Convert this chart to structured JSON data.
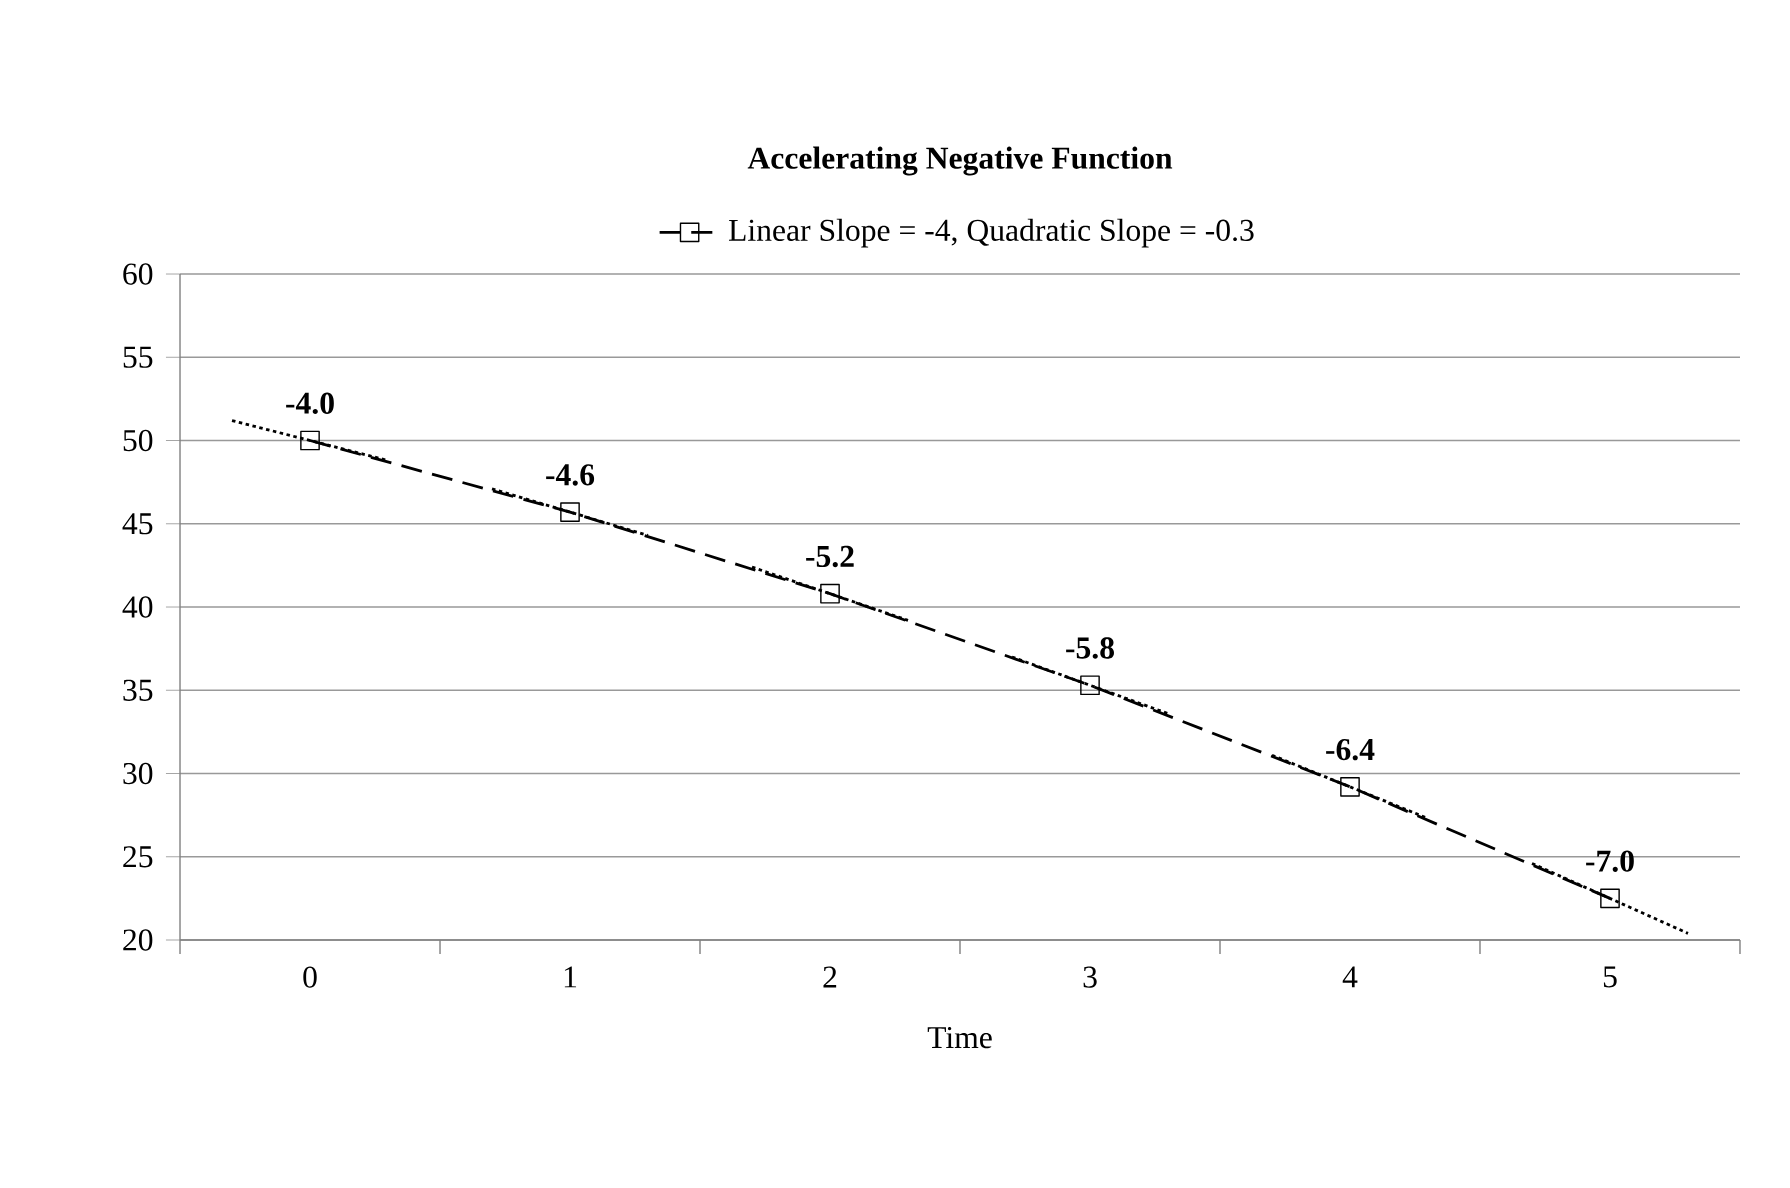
{
  "chart_data": {
    "type": "line",
    "title": "Accelerating Negative Function",
    "xlabel": "Time",
    "x": [
      0,
      1,
      2,
      3,
      4,
      5
    ],
    "series": [
      {
        "name": "Linear Slope = -4, Quadratic Slope = -0.3",
        "color": "#000000",
        "line_style": "dashed",
        "marker": "square",
        "values": [
          50,
          45.7,
          40.8,
          35.3,
          29.2,
          22.5
        ]
      },
      {
        "color": "#000000",
        "line_style": "dotted",
        "marker": "none",
        "x": [
          -0.3,
          0.3
        ],
        "values": [
          51.2,
          48.8
        ]
      },
      {
        "color": "#000000",
        "line_style": "dotted",
        "marker": "none",
        "x": [
          0.7,
          1.3
        ],
        "values": [
          47.1,
          44.3
        ]
      },
      {
        "color": "#000000",
        "line_style": "dotted",
        "marker": "none",
        "x": [
          1.7,
          2.3
        ],
        "values": [
          42.4,
          39.2
        ]
      },
      {
        "color": "#000000",
        "line_style": "dotted",
        "marker": "none",
        "x": [
          2.7,
          3.3
        ],
        "values": [
          37.0,
          33.6
        ]
      },
      {
        "color": "#000000",
        "line_style": "dotted",
        "marker": "none",
        "x": [
          3.7,
          4.3
        ],
        "values": [
          31.1,
          27.3
        ]
      },
      {
        "color": "#000000",
        "line_style": "dotted",
        "marker": "none",
        "x": [
          4.7,
          5.3
        ],
        "values": [
          24.6,
          20.4
        ]
      }
    ],
    "annotations": [
      {
        "text": "-4.0",
        "x": 0,
        "y": 50
      },
      {
        "text": "-4.6",
        "x": 1,
        "y": 45.7
      },
      {
        "text": "-5.2",
        "x": 2,
        "y": 40.8
      },
      {
        "text": "-5.8",
        "x": 3,
        "y": 35.3
      },
      {
        "text": "-6.4",
        "x": 4,
        "y": 29.2
      },
      {
        "text": "-7.0",
        "x": 5,
        "y": 22.5
      }
    ],
    "xlim": [
      -0.5,
      5.5
    ],
    "xticks": [
      {
        "value": -0.5,
        "label": null
      },
      0,
      {
        "value": 0.5,
        "label": null
      },
      1,
      {
        "value": 1.5,
        "label": null
      },
      2,
      {
        "value": 2.5,
        "label": null
      },
      3,
      {
        "value": 3.5,
        "label": null
      },
      4,
      {
        "value": 4.5,
        "label": null
      },
      5,
      {
        "value": 5.5,
        "label": null
      }
    ],
    "ylim": [
      20,
      60
    ],
    "yticks": [
      20,
      25,
      30,
      35,
      40,
      45,
      50,
      55,
      60
    ],
    "grid": "y",
    "legend": "top"
  }
}
